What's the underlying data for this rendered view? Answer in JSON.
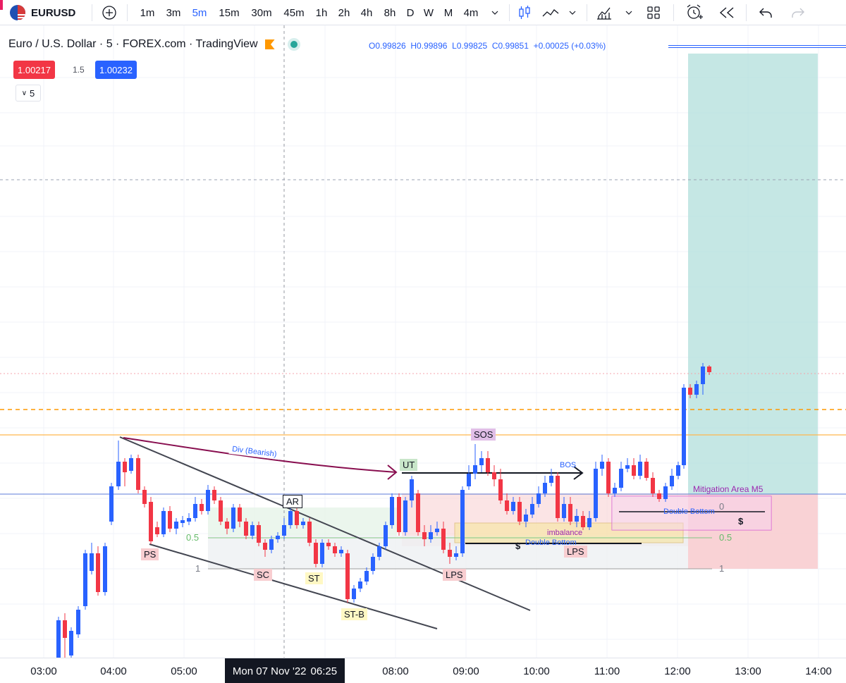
{
  "toolbar": {
    "symbol": "EURUSD",
    "intervals": [
      "1m",
      "3m",
      "5m",
      "15m",
      "30m",
      "45m",
      "1h",
      "2h",
      "4h",
      "8h",
      "D",
      "W",
      "M",
      "4m"
    ],
    "active_interval": "5m"
  },
  "legend": {
    "title": "Euro / U.S. Dollar · 5 · FOREX.com · TradingView",
    "open": "O0.99826",
    "high": "H0.99896",
    "low": "L0.99825",
    "close": "C0.99851",
    "change": "+0.00025 (+0.03%)"
  },
  "quote": {
    "sell": "1.00217",
    "spread": "1.5",
    "buy": "1.00232",
    "collapse": "5"
  },
  "time_axis": {
    "ticks": [
      "03:00",
      "04:00",
      "05:00",
      "08:00",
      "09:00",
      "10:00",
      "11:00",
      "12:00",
      "13:00",
      "14:00"
    ],
    "crosshair_date": "Mon 07 Nov '22",
    "crosshair_time": "06:25"
  },
  "annotations": {
    "ps": "PS",
    "sc": "SC",
    "ar": "AR",
    "st": "ST",
    "stb": "ST-B",
    "ut": "UT",
    "sos": "SOS",
    "lps1": "LPS",
    "lps2": "LPS",
    "bos": "BOS",
    "div": "Div (Bearish)",
    "mitigation": "Mitigation Area M5",
    "double_bottom_1": "Double Bottom",
    "double_bottom_2": "Double Bottom",
    "imbalance": "imbalance",
    "dollar_1": "$",
    "dollar_2": "$",
    "fib_05_left": "0.5",
    "fib_1_left": "1",
    "fib_0_right": "0",
    "fib_05_right": "0.5",
    "fib_1_right": "1"
  },
  "colors": {
    "up": "#2962ff",
    "down": "#f23645",
    "accent": "#2962ff",
    "target_zone": "#b2dfdb",
    "stop_zone": "#f8cdd0"
  }
}
